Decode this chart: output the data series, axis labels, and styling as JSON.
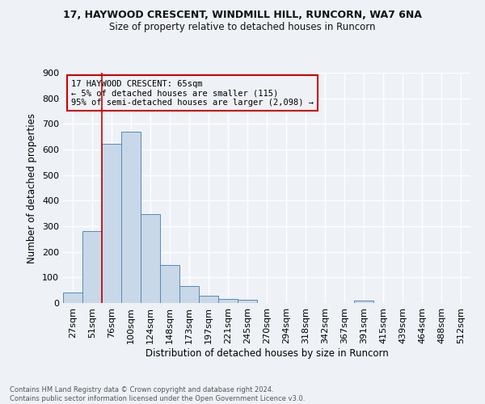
{
  "title1": "17, HAYWOOD CRESCENT, WINDMILL HILL, RUNCORN, WA7 6NA",
  "title2": "Size of property relative to detached houses in Runcorn",
  "xlabel": "Distribution of detached houses by size in Runcorn",
  "ylabel": "Number of detached properties",
  "categories": [
    "27sqm",
    "51sqm",
    "76sqm",
    "100sqm",
    "124sqm",
    "148sqm",
    "173sqm",
    "197sqm",
    "221sqm",
    "245sqm",
    "270sqm",
    "294sqm",
    "318sqm",
    "342sqm",
    "367sqm",
    "391sqm",
    "415sqm",
    "439sqm",
    "464sqm",
    "488sqm",
    "512sqm"
  ],
  "values": [
    42,
    280,
    622,
    670,
    348,
    147,
    65,
    29,
    17,
    12,
    0,
    0,
    0,
    0,
    0,
    9,
    0,
    0,
    0,
    0,
    0
  ],
  "bar_color": "#c8d8e8",
  "bar_edge_color": "#5588bb",
  "annotation_text": "17 HAYWOOD CRESCENT: 65sqm\n← 5% of detached houses are smaller (115)\n95% of semi-detached houses are larger (2,098) →",
  "vline_color": "#cc0000",
  "box_color": "#cc0000",
  "footnote": "Contains HM Land Registry data © Crown copyright and database right 2024.\nContains public sector information licensed under the Open Government Licence v3.0.",
  "ylim": [
    0,
    900
  ],
  "background_color": "#eef2f7",
  "grid_color": "#ffffff"
}
